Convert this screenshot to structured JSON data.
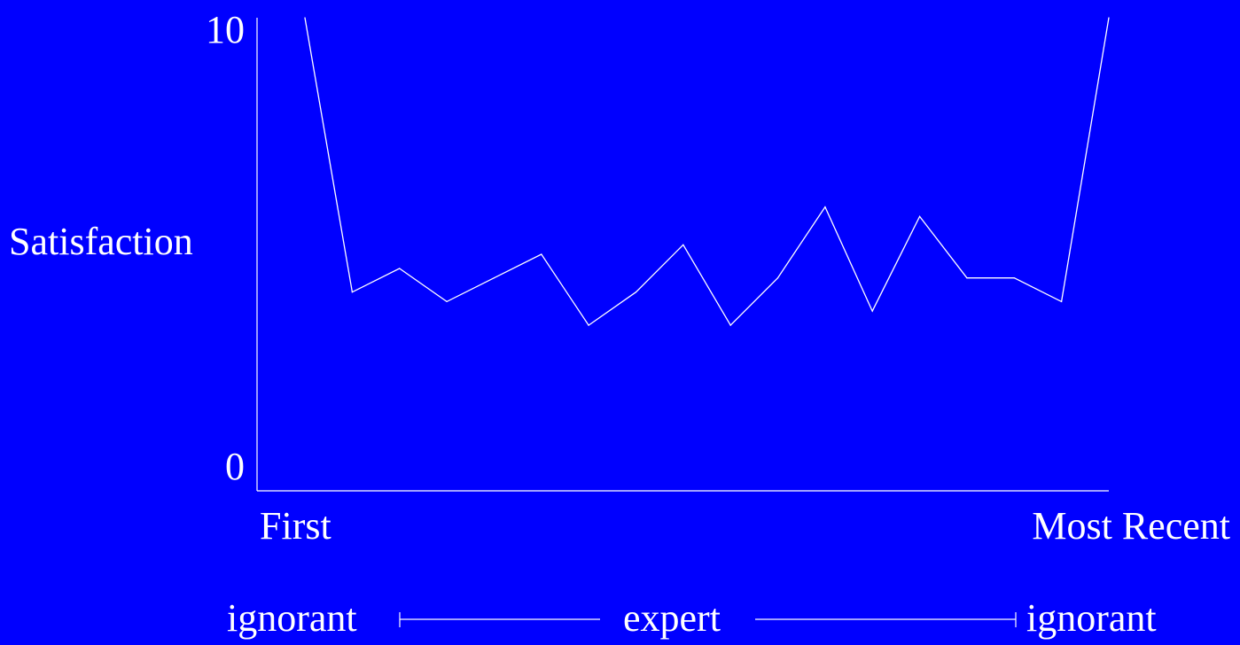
{
  "background": "#0000ff",
  "foreground": "#ffffff",
  "chart_data": {
    "type": "line",
    "title": "",
    "ylabel": "Satisfaction",
    "xlabel": "",
    "ylim": [
      0,
      10
    ],
    "y_ticks": [
      "0",
      "10"
    ],
    "x_start_label": "First",
    "x_end_label": "Most Recent",
    "grid": false,
    "legend": "none",
    "series": [
      {
        "values": [
          10,
          4.2,
          4.7,
          4.0,
          4.5,
          5.0,
          3.5,
          4.2,
          5.2,
          3.5,
          4.5,
          6.0,
          3.8,
          5.8,
          4.5,
          4.5,
          4.0,
          10
        ]
      }
    ]
  },
  "expertise_scale": {
    "start_label": "ignorant",
    "middle_label": "expert",
    "end_label": "ignorant"
  }
}
